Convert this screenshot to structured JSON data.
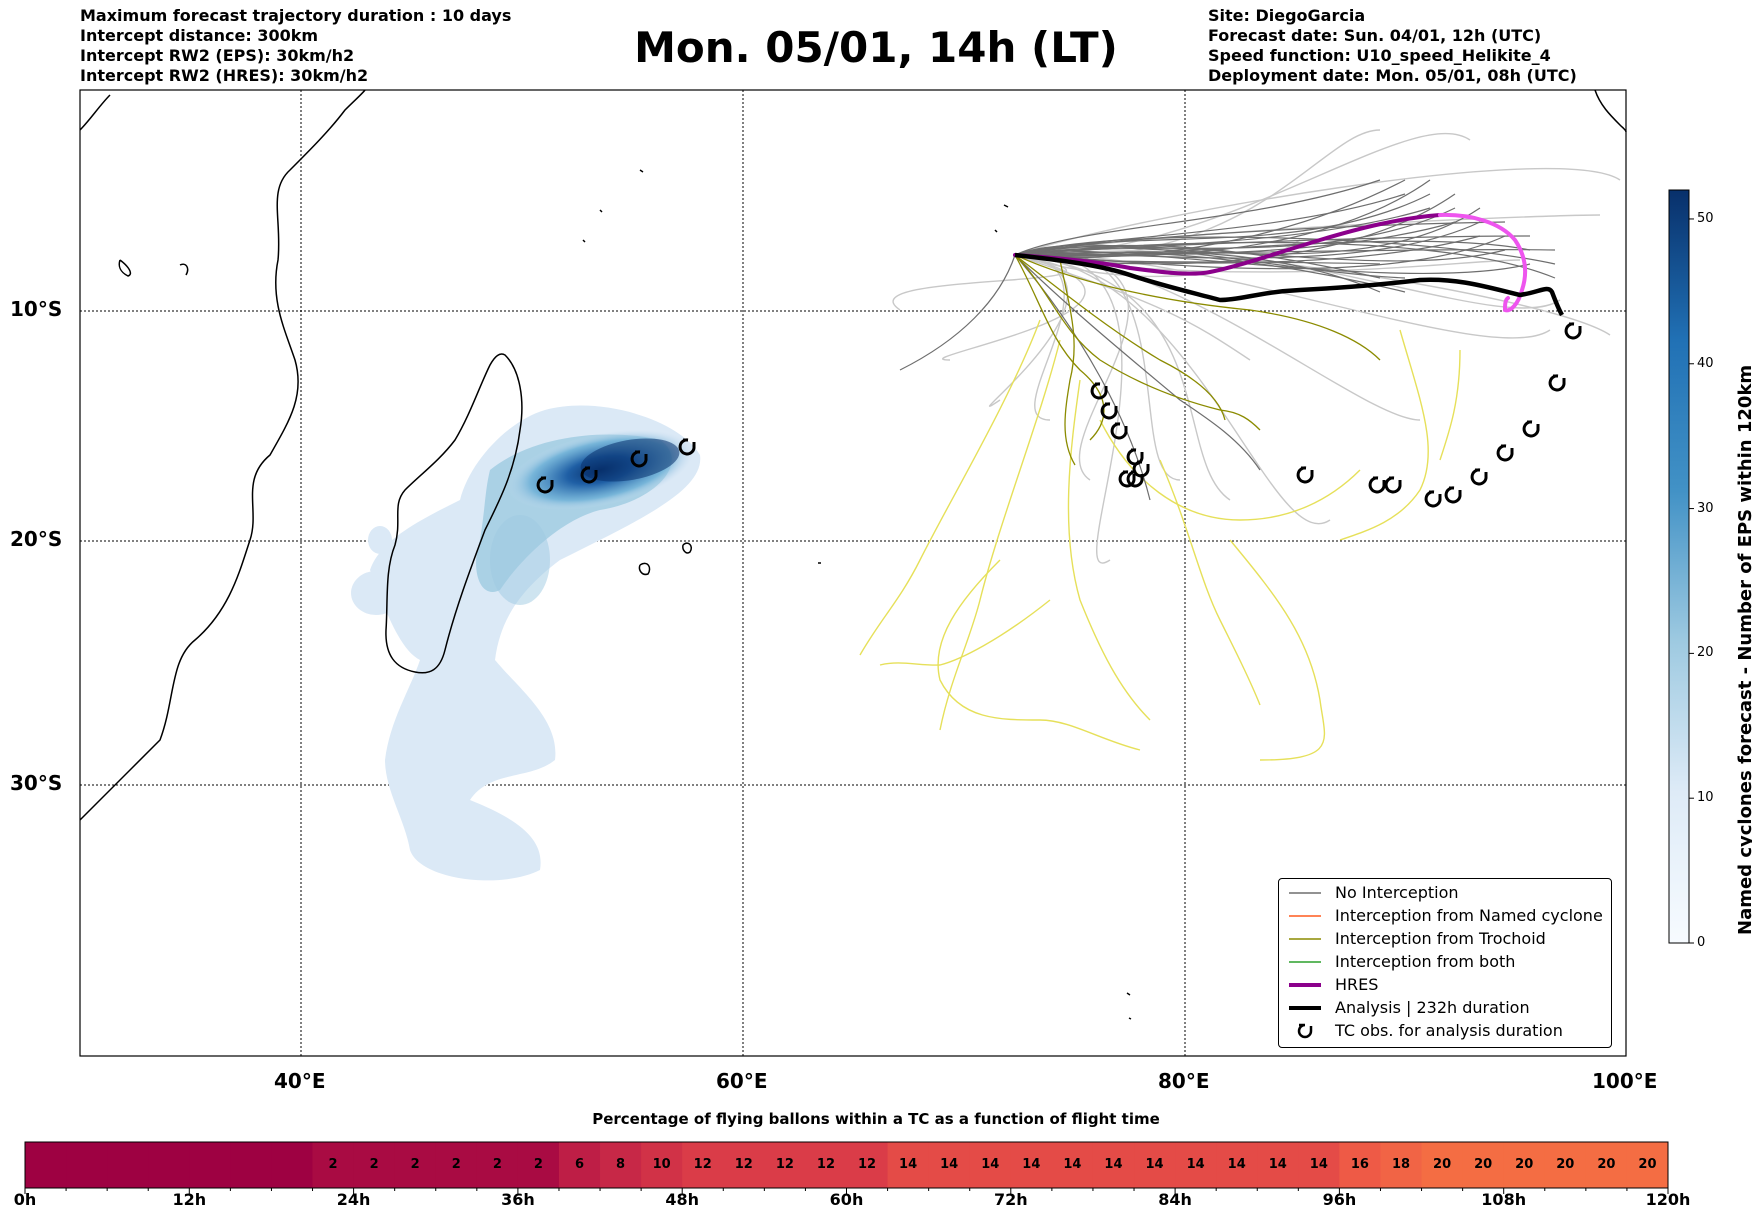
{
  "header": {
    "left": [
      "Maximum forecast trajectory duration : 10 days",
      "Intercept distance: 300km",
      "Intercept RW2 (EPS):  30km/h2",
      "Intercept RW2 (HRES): 30km/h2"
    ],
    "title": "Mon. 05/01, 14h (LT)",
    "right": [
      "Site: DiegoGarcia",
      "Forecast date: Sun. 04/01, 12h (UTC)",
      "Speed function: U10_speed_Helikite_4",
      "Deployment date: Mon. 05/01, 08h (UTC)"
    ]
  },
  "map": {
    "lat_labels": [
      "10°S",
      "20°S",
      "30°S"
    ],
    "lon_labels": [
      "40°E",
      "60°E",
      "80°E",
      "100°E"
    ],
    "colors": {
      "no_interception": "#6e6e6e",
      "eps_light": "#c8c8c8",
      "named_cyclone": "#ff5a1e",
      "trochoid": "#8b8b00",
      "trochoid_light": "#e6e05a",
      "both": "#2ca02c",
      "hres": "#8b008b",
      "hres_tail": "#ee55ee",
      "analysis": "#000000",
      "density": "#08519c"
    }
  },
  "legend": {
    "items": [
      {
        "label": "No Interception",
        "style": "thin-line",
        "color": "#6e6e6e"
      },
      {
        "label": "Interception from Named cyclone",
        "style": "thin-line",
        "color": "#ff5a1e"
      },
      {
        "label": "Interception from Trochoid",
        "style": "thin-line",
        "color": "#8b8b00"
      },
      {
        "label": "Interception from both",
        "style": "thin-line",
        "color": "#2ca02c"
      },
      {
        "label": "HRES",
        "style": "thick-line",
        "color": "#8b008b"
      },
      {
        "label": "Analysis | 232h duration",
        "style": "thick-line",
        "color": "#000000"
      },
      {
        "label": "TC obs. for analysis duration",
        "style": "cyclone-icon",
        "color": "#000000"
      }
    ]
  },
  "colorbar": {
    "title": "Named cyclones forecast - Number of EPS within 120km",
    "ticks": [
      "0",
      "10",
      "20",
      "30",
      "40",
      "50"
    ],
    "min": 0,
    "max": 52
  },
  "percent_bar": {
    "title": "Percentage of flying ballons within a TC as a function of flight time",
    "values": [
      0,
      0,
      0,
      0,
      0,
      0,
      0,
      2,
      2,
      2,
      2,
      2,
      2,
      6,
      8,
      10,
      12,
      12,
      12,
      12,
      12,
      14,
      14,
      14,
      14,
      14,
      14,
      14,
      14,
      14,
      14,
      14,
      16,
      18,
      20,
      20,
      20,
      20,
      20,
      20
    ],
    "tick_labels": [
      "0h",
      "12h",
      "24h",
      "36h",
      "48h",
      "60h",
      "72h",
      "84h",
      "96h",
      "108h",
      "120h"
    ]
  }
}
